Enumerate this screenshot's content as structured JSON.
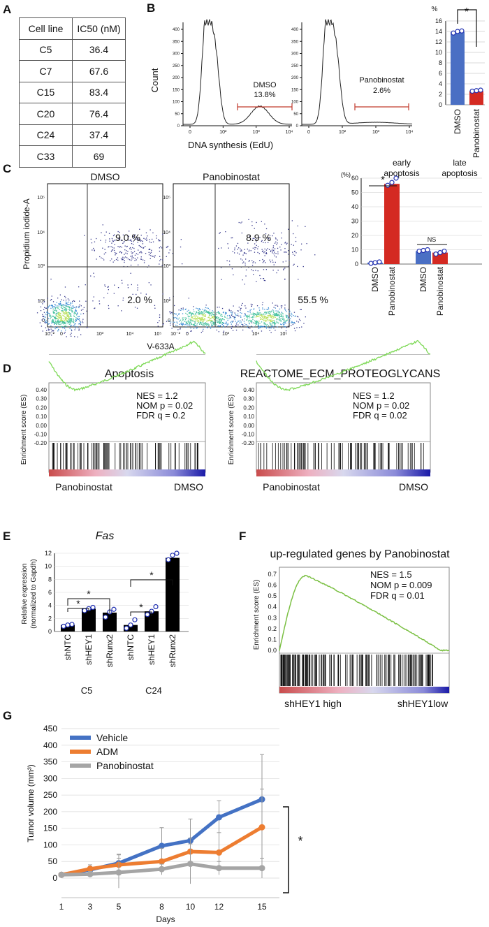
{
  "panels": {
    "A": "A",
    "B": "B",
    "C": "C",
    "D": "D",
    "E": "E",
    "F": "F",
    "G": "G"
  },
  "panelA": {
    "headers": [
      "Cell line",
      "IC50 (nM)"
    ],
    "rows": [
      [
        "C5",
        "36.4"
      ],
      [
        "C7",
        "67.6"
      ],
      [
        "C15",
        "83.4"
      ],
      [
        "C20",
        "76.4"
      ],
      [
        "C24",
        "37.4"
      ],
      [
        "C33",
        "69"
      ]
    ]
  },
  "panelB": {
    "ylabel": "Count",
    "xlabel": "DNA synthesis (EdU)",
    "yticks": [
      "0",
      "50",
      "100",
      "150",
      "200",
      "250",
      "300",
      "350",
      "400"
    ],
    "xticks": [
      "0",
      "10²",
      "10³",
      "10⁴"
    ],
    "hist": [
      {
        "name": "DMSO",
        "pct": "13.8%"
      },
      {
        "name": "Panobinostat",
        "pct": "2.6%"
      }
    ],
    "chart_data": {
      "type": "bar",
      "ylabel": "%",
      "categories": [
        "DMSO",
        "Panobinostat"
      ],
      "values": [
        13.9,
        2.6
      ],
      "points": [
        [
          13.7,
          14.0,
          14.1
        ],
        [
          2.6,
          2.7,
          2.8
        ]
      ],
      "ylim": [
        0,
        16
      ],
      "yticks": [
        "0",
        "2",
        "4",
        "6",
        "8",
        "10",
        "12",
        "14",
        "16"
      ],
      "sig": "*",
      "colors": [
        "#4a6fc4",
        "#d42a22"
      ]
    }
  },
  "panelC": {
    "ylabel": "Propidium iodide-A",
    "xlabel": "V-633A",
    "yticks": [
      "0",
      "10²",
      "10³",
      "10⁴",
      "10⁵"
    ],
    "xticks": [
      "10⁻²",
      "0",
      "10³",
      "10⁴",
      "10⁵"
    ],
    "plots": [
      {
        "title": "DMSO",
        "q2": "9.0 %",
        "q4": "2.0 %"
      },
      {
        "title": "Panobinostat",
        "q2": "8.9 %",
        "q4": "55.5 %"
      }
    ],
    "chart_data": {
      "type": "bar",
      "ylabel": "(%)",
      "groups": [
        "early apoptosis",
        "late apoptosis"
      ],
      "categories": [
        "DMSO",
        "Panobinostat",
        "DMSO",
        "Panobinostat"
      ],
      "values": [
        1.0,
        56.0,
        9.0,
        8.0
      ],
      "ylim": [
        0,
        60
      ],
      "yticks": [
        "0",
        "10",
        "20",
        "30",
        "40",
        "50",
        "60"
      ],
      "annotations": [
        "*",
        "NS"
      ],
      "colors": [
        "#4a6fc4",
        "#d42a22",
        "#4a6fc4",
        "#d42a22"
      ]
    }
  },
  "panelD": {
    "ylabel": "Enrichment score (ES)",
    "yticks": [
      "0.40",
      "0.30",
      "0.20",
      "0.10",
      "0.00",
      "-0.10",
      "-0.20"
    ],
    "plots": [
      {
        "title": "Apoptosis",
        "nes": "NES = 1.2",
        "nom": "NOM p = 0.02",
        "fdr": "FDR q = 0.2",
        "left": "Panobinostat",
        "right": "DMSO"
      },
      {
        "title": "REACTOME_ECM_PROTEOGLYCANS",
        "nes": "NES = 1.2",
        "nom": "NOM p = 0.02",
        "fdr": "FDR q = 0.02",
        "left": "Panobinostat",
        "right": "DMSO"
      }
    ]
  },
  "panelE": {
    "title": "Fas",
    "ylabel1": "Relative expression",
    "ylabel2": "(normalized to Gapdh)",
    "yticks": [
      "0",
      "2",
      "4",
      "6",
      "8",
      "10",
      "12"
    ],
    "groups": [
      "C5",
      "C24"
    ],
    "chart_data": {
      "type": "bar",
      "categories": [
        "shNTC",
        "shHEY1",
        "shRunx2",
        "shNTC",
        "shHEY1",
        "shRunx2"
      ],
      "values": [
        1.0,
        3.5,
        2.9,
        1.0,
        3.1,
        11.3
      ],
      "ylim": [
        0,
        12
      ],
      "sig": "*"
    }
  },
  "panelF": {
    "title": "up-regulated genes by Panobinostat",
    "ylabel": "Enrichment score (ES)",
    "yticks": [
      "0.7",
      "0.6",
      "0.5",
      "0.4",
      "0.3",
      "0.2",
      "0.1",
      "0.0"
    ],
    "nes": "NES = 1.5",
    "nom": "NOM p = 0.009",
    "fdr": "FDR q = 0.01",
    "left": "shHEY1 high",
    "right": "shHEY1low"
  },
  "panelG": {
    "chart_data": {
      "type": "line",
      "x": [
        "1",
        "3",
        "5",
        "8",
        "10",
        "12",
        "15"
      ],
      "ylabel": "Tumor volume (mm³)",
      "xlabel": "Days",
      "ylim": [
        0,
        450
      ],
      "yticks": [
        "0",
        "50",
        "100",
        "150",
        "200",
        "250",
        "300",
        "350",
        "400",
        "450"
      ],
      "series": [
        {
          "name": "Vehicle",
          "color": "#4472c4",
          "values": [
            10,
            25,
            45,
            97,
            113,
            183,
            237
          ],
          "err": [
            5,
            10,
            25,
            55,
            65,
            50,
            135
          ]
        },
        {
          "name": "ADM",
          "color": "#ed7d31",
          "values": [
            10,
            28,
            40,
            50,
            80,
            77,
            153
          ],
          "err": [
            5,
            12,
            20,
            40,
            40,
            60,
            115
          ]
        },
        {
          "name": "Panobinostat",
          "color": "#a5a5a5",
          "values": [
            10,
            12,
            17,
            27,
            43,
            30,
            30
          ],
          "err": [
            5,
            8,
            55,
            15,
            60,
            20,
            30
          ]
        }
      ],
      "sig": "*"
    }
  }
}
